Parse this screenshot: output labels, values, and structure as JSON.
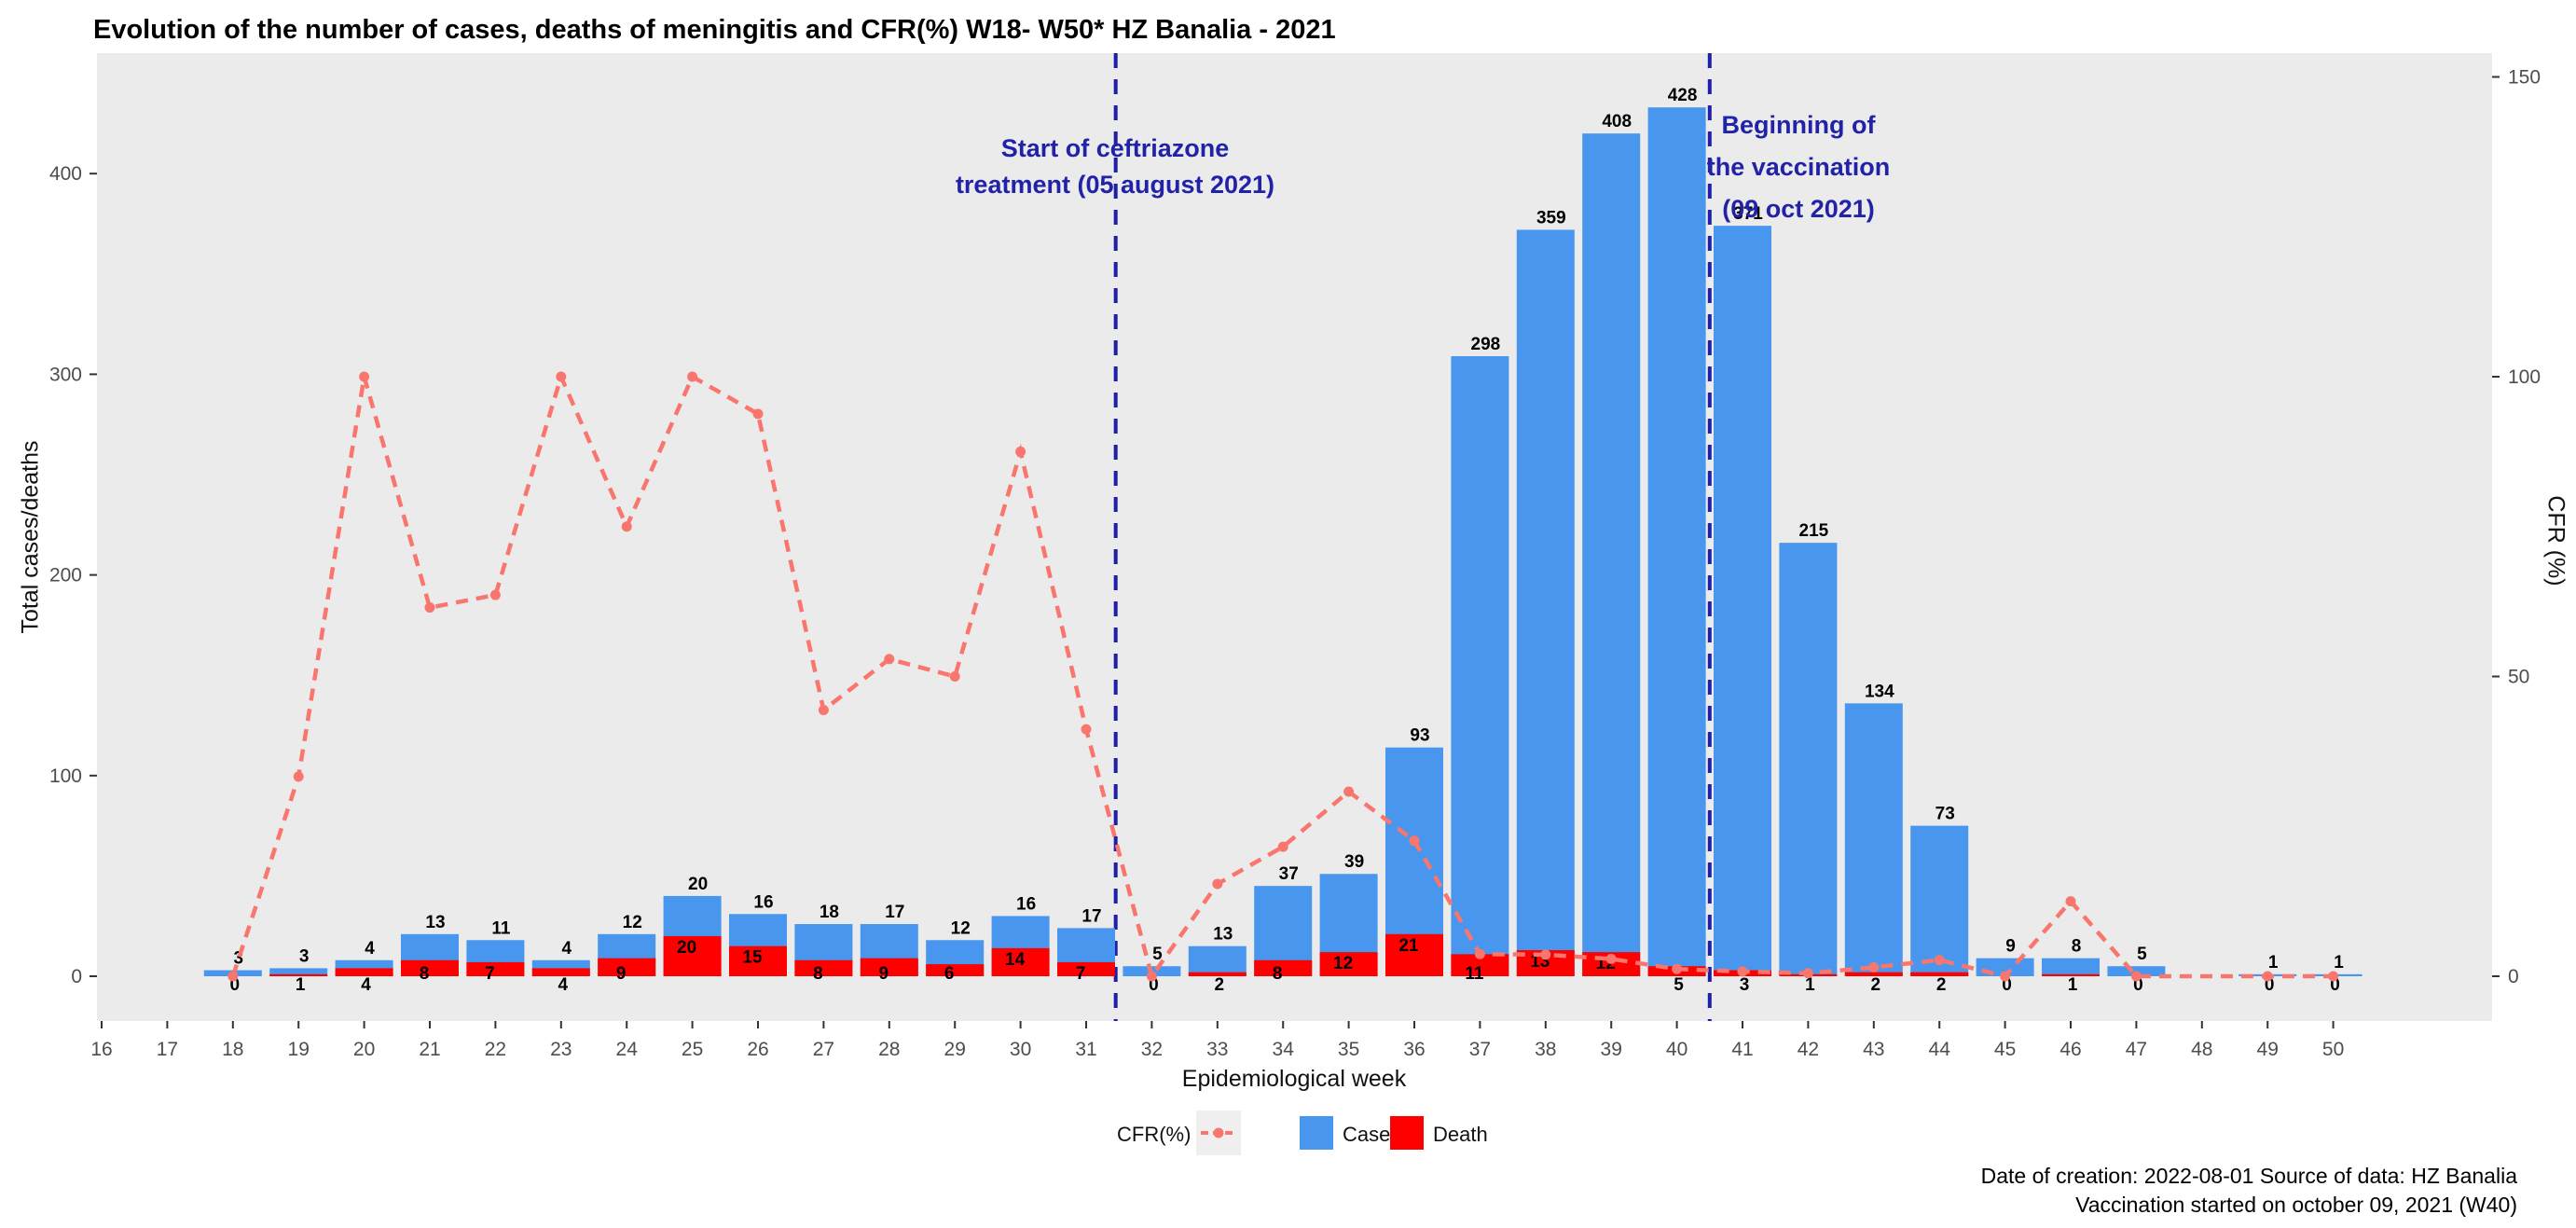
{
  "title": "Evolution of the number of cases, deaths of meningitis and CFR(%) W18- W50* HZ Banalia - 2021",
  "axes": {
    "left_label": "Total cases/deaths",
    "right_label": "CFR (%)",
    "x_label": "Epidemiological week"
  },
  "annotations": {
    "treatment": {
      "line1": "Start of ceftriazone",
      "line2": "treatment (05 august 2021)",
      "week": 31.45
    },
    "vaccination": {
      "line1": "Beginning of",
      "line2": "the vaccination",
      "line3": "(09 oct 2021)",
      "week": 40.5
    }
  },
  "legend": {
    "cfr_label": "CFR(%)",
    "case_label": "Case",
    "death_label": "Death"
  },
  "footer": {
    "line1": "Date of creation: 2022-08-01  Source of data: HZ Banalia",
    "line2": "Vaccination started on october 09, 2021 (W40)"
  },
  "colors": {
    "case": "#4896EE",
    "death": "#FE0000",
    "cfr": "#F8766D",
    "panel": "#EBEBEB",
    "annotation": "#2222A8",
    "vline": "#1E1EA8",
    "tick_text": "#4D4D4D",
    "tick_mark": "#333333",
    "bar_label": "#000000"
  },
  "chart_data": {
    "type": "bar",
    "title": "Evolution of the number of cases, deaths of meningitis and CFR(%) W18- W50* HZ Banalia - 2021",
    "xlabel": "Epidemiological week",
    "ylabel_left": "Total cases/deaths",
    "ylabel_right": "CFR (%)",
    "stacked": true,
    "grid": false,
    "legend_position": "bottom",
    "x_range": [
      16,
      50
    ],
    "left_ylim": [
      0,
      460
    ],
    "right_ylim": [
      0,
      155
    ],
    "x_ticks": [
      16,
      17,
      18,
      19,
      20,
      21,
      22,
      23,
      24,
      25,
      26,
      27,
      28,
      29,
      30,
      31,
      32,
      33,
      34,
      35,
      36,
      37,
      38,
      39,
      40,
      41,
      42,
      43,
      44,
      45,
      46,
      47,
      48,
      49,
      50
    ],
    "left_ticks": [
      0,
      100,
      200,
      300,
      400
    ],
    "right_ticks": [
      0,
      50,
      100,
      150
    ],
    "weeks": [
      18,
      19,
      20,
      21,
      22,
      23,
      24,
      25,
      26,
      27,
      28,
      29,
      30,
      31,
      32,
      33,
      34,
      35,
      36,
      37,
      38,
      39,
      40,
      41,
      42,
      43,
      44,
      45,
      46,
      47,
      48,
      49,
      50
    ],
    "series": [
      {
        "name": "Case",
        "type": "bar",
        "axis": "left",
        "values": [
          3,
          3,
          4,
          13,
          11,
          4,
          12,
          20,
          16,
          18,
          17,
          12,
          16,
          17,
          5,
          13,
          37,
          39,
          93,
          298,
          359,
          408,
          428,
          371,
          215,
          134,
          73,
          9,
          8,
          5,
          null,
          1,
          1
        ]
      },
      {
        "name": "Death",
        "type": "bar",
        "axis": "left",
        "values": [
          0,
          1,
          4,
          8,
          7,
          4,
          9,
          20,
          15,
          8,
          9,
          6,
          14,
          7,
          0,
          2,
          8,
          12,
          21,
          11,
          13,
          12,
          5,
          3,
          1,
          2,
          2,
          0,
          1,
          0,
          null,
          0,
          0
        ]
      },
      {
        "name": "CFR(%)",
        "type": "line",
        "axis": "right",
        "linestyle": "dashed",
        "marker": "circle",
        "values": [
          0,
          33.3,
          100,
          61.5,
          63.6,
          100,
          75,
          100,
          93.8,
          44.4,
          52.9,
          50,
          87.5,
          41.2,
          0,
          15.4,
          21.6,
          30.8,
          22.6,
          3.7,
          3.6,
          2.9,
          1.2,
          0.8,
          0.5,
          1.5,
          2.7,
          0,
          12.5,
          0,
          null,
          0,
          0
        ]
      }
    ],
    "vlines": [
      {
        "week": 31.45,
        "label": "Start of ceftriazone treatment (05 august 2021)"
      },
      {
        "week": 40.5,
        "label": "Beginning of the vaccination (09 oct 2021)"
      }
    ]
  }
}
